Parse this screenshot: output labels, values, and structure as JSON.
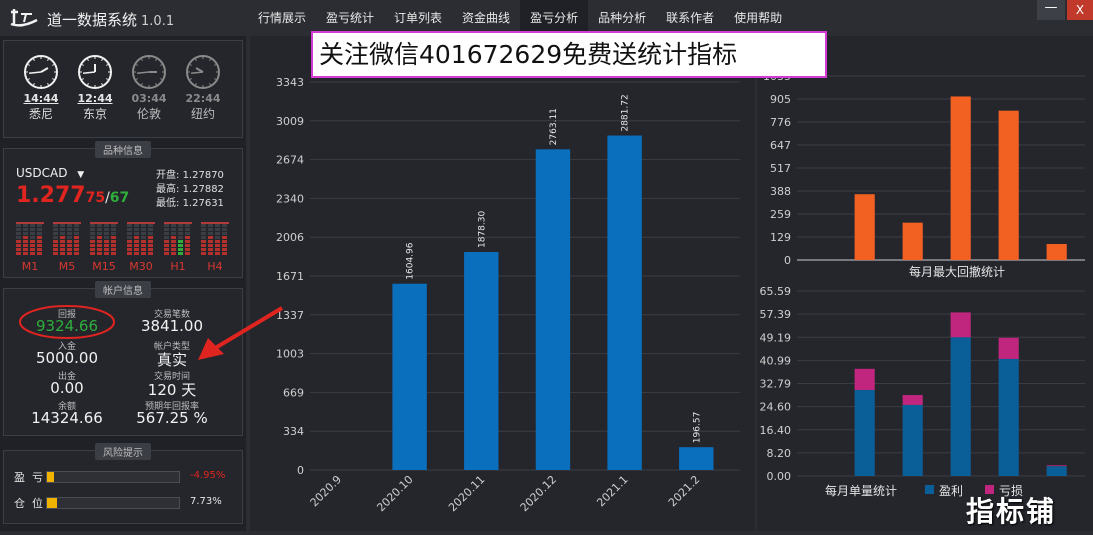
{
  "app": {
    "title": "道一数据系统",
    "version": "1.0.1"
  },
  "menu": [
    {
      "label": "行情展示",
      "active": false
    },
    {
      "label": "盈亏统计",
      "active": false
    },
    {
      "label": "订单列表",
      "active": false
    },
    {
      "label": "资金曲线",
      "active": false
    },
    {
      "label": "盈亏分析",
      "active": true
    },
    {
      "label": "品种分析",
      "active": false
    },
    {
      "label": "联系作者",
      "active": false
    },
    {
      "label": "使用帮助",
      "active": false
    }
  ],
  "window": {
    "minimize": "—",
    "close": "X"
  },
  "clocks": [
    {
      "time": "14:44",
      "city": "悉尼",
      "active": true
    },
    {
      "time": "12:44",
      "city": "东京",
      "active": true
    },
    {
      "time": "03:44",
      "city": "伦敦",
      "active": false
    },
    {
      "time": "22:44",
      "city": "纽约",
      "active": false
    }
  ],
  "symbol_panel": {
    "tab": "品种信息",
    "symbol": "USDCAD",
    "price_big": "1.277",
    "bid_small": "75",
    "slash": "/",
    "ask_small": "67",
    "open_label": "开盘:",
    "open": "1.27870",
    "high_label": "最高:",
    "high": "1.27882",
    "low_label": "最低:",
    "low": "1.27631",
    "timeframes": [
      "M1",
      "M5",
      "M15",
      "M30",
      "H1",
      "H4"
    ]
  },
  "account_panel": {
    "tab": "帐户信息",
    "return_label": "回报",
    "return_value": "9324.66",
    "deposit_label": "入金",
    "deposit_value": "5000.00",
    "withdraw_label": "出金",
    "withdraw_value": "0.00",
    "balance_label": "余额",
    "balance_value": "14324.66",
    "trades_label": "交易笔数",
    "trades_value": "3841.00",
    "type_label": "帐户类型",
    "type_value": "真实",
    "time_label": "交易时间",
    "time_value": "120 天",
    "annual_label": "预期年回报率",
    "annual_value": "567.25 %"
  },
  "risk_panel": {
    "tab": "风险提示",
    "rows": [
      {
        "label": "盈  亏",
        "value": "-4.95%",
        "fill": 0.05,
        "color": "#e0241f"
      },
      {
        "label": "仓  位",
        "value": "7.73%",
        "fill": 0.077,
        "color": "#e6e6e6"
      }
    ]
  },
  "banner": "关注微信401672629免费送统计指标",
  "watermark": "指标铺",
  "chart_data": [
    {
      "type": "bar",
      "categories": [
        "2020.9",
        "2020.10",
        "2020.11",
        "2020.12",
        "2021.1",
        "2021.2"
      ],
      "values": [
        0,
        1604.96,
        1878.3,
        2763.11,
        2881.72,
        196.57
      ],
      "labels": [
        "",
        "1604.96",
        "1878.30",
        "2763.11",
        "2881.72",
        "196.57"
      ],
      "yticks": [
        "0",
        "334",
        "669",
        "1003",
        "1337",
        "1671",
        "2006",
        "2340",
        "2674",
        "3009",
        "3343"
      ],
      "ylim": [
        0,
        3343
      ],
      "color": "#0a6fbd"
    },
    {
      "type": "bar",
      "title": "每月最大回撤统计",
      "values": [
        0,
        370,
        210,
        920,
        840,
        90
      ],
      "yticks": [
        "0",
        "129",
        "259",
        "388",
        "517",
        "647",
        "776",
        "905",
        "1035"
      ],
      "ylim": [
        0,
        1035
      ],
      "color": "#f26122"
    },
    {
      "type": "bar",
      "title": "每月单量统计",
      "stacked": true,
      "series": [
        {
          "name": "盈利",
          "values": [
            0,
            30.5,
            25.2,
            49.2,
            41.5,
            3.5
          ],
          "color": "#0a5f98"
        },
        {
          "name": "亏损",
          "values": [
            0,
            7.5,
            3.5,
            8.8,
            7.5,
            0.3
          ],
          "color": "#c0267e"
        }
      ],
      "yticks": [
        "0.00",
        "8.20",
        "16.40",
        "24.60",
        "32.79",
        "40.99",
        "49.19",
        "57.39",
        "65.59"
      ],
      "ylim": [
        0,
        65.59
      ]
    }
  ]
}
